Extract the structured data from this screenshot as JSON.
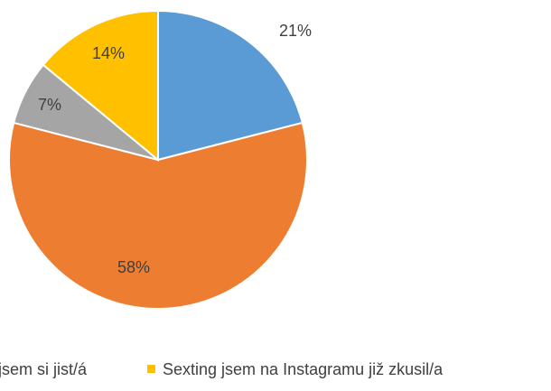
{
  "chart_data": {
    "type": "pie",
    "categories": [
      null,
      null,
      "jsem si jist/á",
      "Sexting jsem na Instagramu již zkusil/a"
    ],
    "values": [
      21,
      58,
      7,
      14
    ],
    "value_labels": [
      "21%",
      "58%",
      "7%",
      "14%"
    ],
    "colors": [
      "#5b9bd5",
      "#ed7d31",
      "#a5a5a5",
      "#ffc000"
    ],
    "legend": "bottom"
  }
}
